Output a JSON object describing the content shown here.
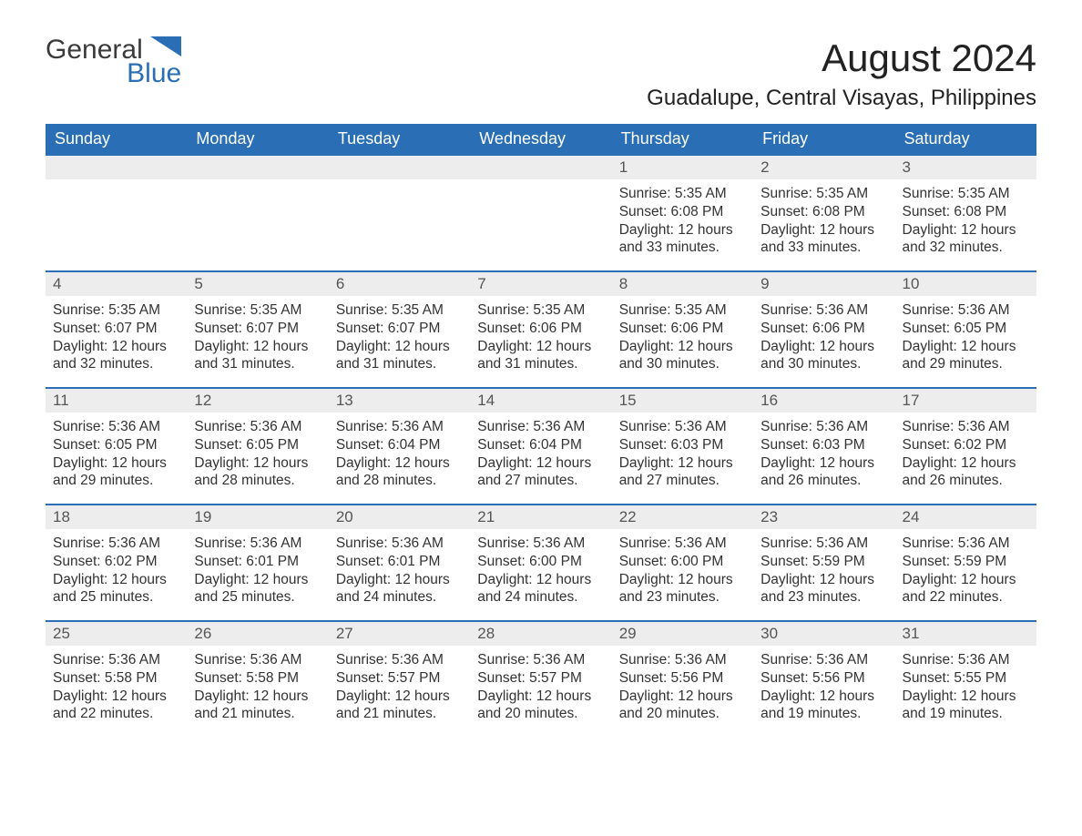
{
  "logo": {
    "text1": "General",
    "text2": "Blue"
  },
  "title": "August 2024",
  "location": "Guadalupe, Central Visayas, Philippines",
  "colors": {
    "header_bg": "#2a6fb5",
    "header_text": "#ffffff",
    "daynum_bg": "#ededed",
    "daynum_border": "#2a6fb5",
    "body_text": "#333333",
    "background": "#ffffff"
  },
  "day_headers": [
    "Sunday",
    "Monday",
    "Tuesday",
    "Wednesday",
    "Thursday",
    "Friday",
    "Saturday"
  ],
  "weeks": [
    [
      null,
      null,
      null,
      null,
      {
        "n": "1",
        "sr": "Sunrise: 5:35 AM",
        "ss": "Sunset: 6:08 PM",
        "d1": "Daylight: 12 hours",
        "d2": "and 33 minutes."
      },
      {
        "n": "2",
        "sr": "Sunrise: 5:35 AM",
        "ss": "Sunset: 6:08 PM",
        "d1": "Daylight: 12 hours",
        "d2": "and 33 minutes."
      },
      {
        "n": "3",
        "sr": "Sunrise: 5:35 AM",
        "ss": "Sunset: 6:08 PM",
        "d1": "Daylight: 12 hours",
        "d2": "and 32 minutes."
      }
    ],
    [
      {
        "n": "4",
        "sr": "Sunrise: 5:35 AM",
        "ss": "Sunset: 6:07 PM",
        "d1": "Daylight: 12 hours",
        "d2": "and 32 minutes."
      },
      {
        "n": "5",
        "sr": "Sunrise: 5:35 AM",
        "ss": "Sunset: 6:07 PM",
        "d1": "Daylight: 12 hours",
        "d2": "and 31 minutes."
      },
      {
        "n": "6",
        "sr": "Sunrise: 5:35 AM",
        "ss": "Sunset: 6:07 PM",
        "d1": "Daylight: 12 hours",
        "d2": "and 31 minutes."
      },
      {
        "n": "7",
        "sr": "Sunrise: 5:35 AM",
        "ss": "Sunset: 6:06 PM",
        "d1": "Daylight: 12 hours",
        "d2": "and 31 minutes."
      },
      {
        "n": "8",
        "sr": "Sunrise: 5:35 AM",
        "ss": "Sunset: 6:06 PM",
        "d1": "Daylight: 12 hours",
        "d2": "and 30 minutes."
      },
      {
        "n": "9",
        "sr": "Sunrise: 5:36 AM",
        "ss": "Sunset: 6:06 PM",
        "d1": "Daylight: 12 hours",
        "d2": "and 30 minutes."
      },
      {
        "n": "10",
        "sr": "Sunrise: 5:36 AM",
        "ss": "Sunset: 6:05 PM",
        "d1": "Daylight: 12 hours",
        "d2": "and 29 minutes."
      }
    ],
    [
      {
        "n": "11",
        "sr": "Sunrise: 5:36 AM",
        "ss": "Sunset: 6:05 PM",
        "d1": "Daylight: 12 hours",
        "d2": "and 29 minutes."
      },
      {
        "n": "12",
        "sr": "Sunrise: 5:36 AM",
        "ss": "Sunset: 6:05 PM",
        "d1": "Daylight: 12 hours",
        "d2": "and 28 minutes."
      },
      {
        "n": "13",
        "sr": "Sunrise: 5:36 AM",
        "ss": "Sunset: 6:04 PM",
        "d1": "Daylight: 12 hours",
        "d2": "and 28 minutes."
      },
      {
        "n": "14",
        "sr": "Sunrise: 5:36 AM",
        "ss": "Sunset: 6:04 PM",
        "d1": "Daylight: 12 hours",
        "d2": "and 27 minutes."
      },
      {
        "n": "15",
        "sr": "Sunrise: 5:36 AM",
        "ss": "Sunset: 6:03 PM",
        "d1": "Daylight: 12 hours",
        "d2": "and 27 minutes."
      },
      {
        "n": "16",
        "sr": "Sunrise: 5:36 AM",
        "ss": "Sunset: 6:03 PM",
        "d1": "Daylight: 12 hours",
        "d2": "and 26 minutes."
      },
      {
        "n": "17",
        "sr": "Sunrise: 5:36 AM",
        "ss": "Sunset: 6:02 PM",
        "d1": "Daylight: 12 hours",
        "d2": "and 26 minutes."
      }
    ],
    [
      {
        "n": "18",
        "sr": "Sunrise: 5:36 AM",
        "ss": "Sunset: 6:02 PM",
        "d1": "Daylight: 12 hours",
        "d2": "and 25 minutes."
      },
      {
        "n": "19",
        "sr": "Sunrise: 5:36 AM",
        "ss": "Sunset: 6:01 PM",
        "d1": "Daylight: 12 hours",
        "d2": "and 25 minutes."
      },
      {
        "n": "20",
        "sr": "Sunrise: 5:36 AM",
        "ss": "Sunset: 6:01 PM",
        "d1": "Daylight: 12 hours",
        "d2": "and 24 minutes."
      },
      {
        "n": "21",
        "sr": "Sunrise: 5:36 AM",
        "ss": "Sunset: 6:00 PM",
        "d1": "Daylight: 12 hours",
        "d2": "and 24 minutes."
      },
      {
        "n": "22",
        "sr": "Sunrise: 5:36 AM",
        "ss": "Sunset: 6:00 PM",
        "d1": "Daylight: 12 hours",
        "d2": "and 23 minutes."
      },
      {
        "n": "23",
        "sr": "Sunrise: 5:36 AM",
        "ss": "Sunset: 5:59 PM",
        "d1": "Daylight: 12 hours",
        "d2": "and 23 minutes."
      },
      {
        "n": "24",
        "sr": "Sunrise: 5:36 AM",
        "ss": "Sunset: 5:59 PM",
        "d1": "Daylight: 12 hours",
        "d2": "and 22 minutes."
      }
    ],
    [
      {
        "n": "25",
        "sr": "Sunrise: 5:36 AM",
        "ss": "Sunset: 5:58 PM",
        "d1": "Daylight: 12 hours",
        "d2": "and 22 minutes."
      },
      {
        "n": "26",
        "sr": "Sunrise: 5:36 AM",
        "ss": "Sunset: 5:58 PM",
        "d1": "Daylight: 12 hours",
        "d2": "and 21 minutes."
      },
      {
        "n": "27",
        "sr": "Sunrise: 5:36 AM",
        "ss": "Sunset: 5:57 PM",
        "d1": "Daylight: 12 hours",
        "d2": "and 21 minutes."
      },
      {
        "n": "28",
        "sr": "Sunrise: 5:36 AM",
        "ss": "Sunset: 5:57 PM",
        "d1": "Daylight: 12 hours",
        "d2": "and 20 minutes."
      },
      {
        "n": "29",
        "sr": "Sunrise: 5:36 AM",
        "ss": "Sunset: 5:56 PM",
        "d1": "Daylight: 12 hours",
        "d2": "and 20 minutes."
      },
      {
        "n": "30",
        "sr": "Sunrise: 5:36 AM",
        "ss": "Sunset: 5:56 PM",
        "d1": "Daylight: 12 hours",
        "d2": "and 19 minutes."
      },
      {
        "n": "31",
        "sr": "Sunrise: 5:36 AM",
        "ss": "Sunset: 5:55 PM",
        "d1": "Daylight: 12 hours",
        "d2": "and 19 minutes."
      }
    ]
  ]
}
